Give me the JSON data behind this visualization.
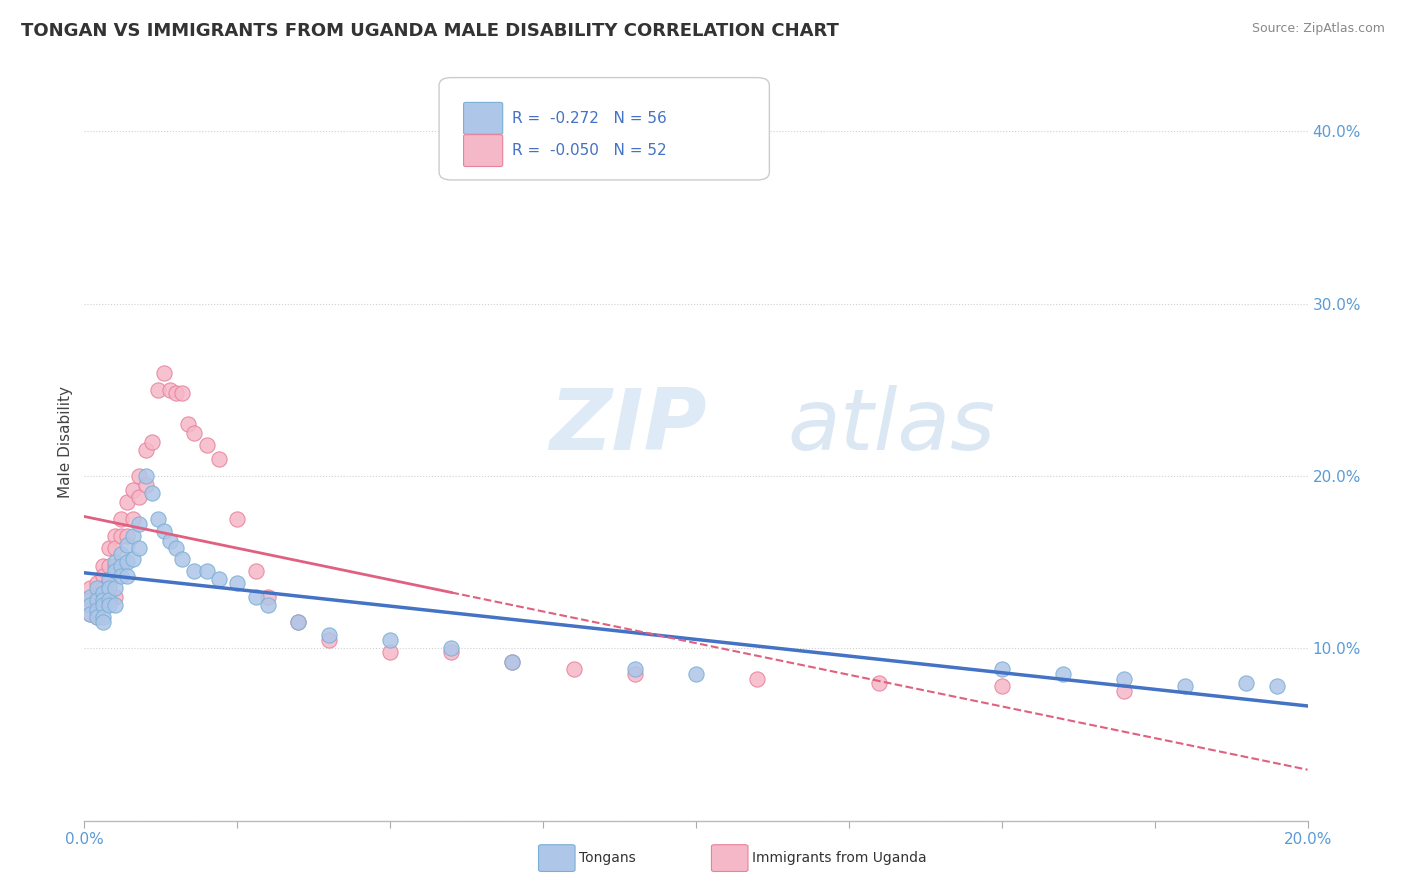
{
  "title": "TONGAN VS IMMIGRANTS FROM UGANDA MALE DISABILITY CORRELATION CHART",
  "source": "Source: ZipAtlas.com",
  "ylabel": "Male Disability",
  "xlim": [
    0.0,
    0.2
  ],
  "ylim": [
    0.0,
    0.44
  ],
  "color_tongan_fill": "#aec6e8",
  "color_tongan_edge": "#7bafd4",
  "color_uganda_fill": "#f5b8c8",
  "color_uganda_edge": "#e8819a",
  "color_line_tongan": "#4472c4",
  "color_line_uganda": "#e06080",
  "watermark_zip": "ZIP",
  "watermark_atlas": "atlas",
  "background_color": "#ffffff",
  "grid_color": "#d0d0d0",
  "tongan_x": [
    0.001,
    0.001,
    0.001,
    0.002,
    0.002,
    0.002,
    0.002,
    0.003,
    0.003,
    0.003,
    0.003,
    0.003,
    0.004,
    0.004,
    0.004,
    0.004,
    0.005,
    0.005,
    0.005,
    0.005,
    0.006,
    0.006,
    0.006,
    0.007,
    0.007,
    0.007,
    0.008,
    0.008,
    0.009,
    0.009,
    0.01,
    0.011,
    0.012,
    0.013,
    0.014,
    0.015,
    0.016,
    0.018,
    0.02,
    0.022,
    0.025,
    0.028,
    0.03,
    0.035,
    0.04,
    0.05,
    0.06,
    0.07,
    0.09,
    0.1,
    0.15,
    0.16,
    0.17,
    0.18,
    0.19,
    0.195
  ],
  "tongan_y": [
    0.13,
    0.125,
    0.12,
    0.135,
    0.128,
    0.122,
    0.118,
    0.132,
    0.128,
    0.125,
    0.118,
    0.115,
    0.14,
    0.135,
    0.128,
    0.125,
    0.15,
    0.145,
    0.135,
    0.125,
    0.155,
    0.148,
    0.142,
    0.16,
    0.15,
    0.142,
    0.165,
    0.152,
    0.172,
    0.158,
    0.2,
    0.19,
    0.175,
    0.168,
    0.162,
    0.158,
    0.152,
    0.145,
    0.145,
    0.14,
    0.138,
    0.13,
    0.125,
    0.115,
    0.108,
    0.105,
    0.1,
    0.092,
    0.088,
    0.085,
    0.088,
    0.085,
    0.082,
    0.078,
    0.08,
    0.078
  ],
  "uganda_x": [
    0.001,
    0.001,
    0.001,
    0.002,
    0.002,
    0.002,
    0.003,
    0.003,
    0.003,
    0.003,
    0.004,
    0.004,
    0.004,
    0.005,
    0.005,
    0.005,
    0.005,
    0.006,
    0.006,
    0.006,
    0.007,
    0.007,
    0.008,
    0.008,
    0.009,
    0.009,
    0.01,
    0.01,
    0.011,
    0.012,
    0.013,
    0.014,
    0.015,
    0.016,
    0.017,
    0.018,
    0.02,
    0.022,
    0.025,
    0.028,
    0.03,
    0.035,
    0.04,
    0.05,
    0.06,
    0.07,
    0.08,
    0.09,
    0.11,
    0.13,
    0.15,
    0.17
  ],
  "uganda_y": [
    0.135,
    0.128,
    0.12,
    0.138,
    0.13,
    0.118,
    0.148,
    0.142,
    0.135,
    0.128,
    0.158,
    0.148,
    0.138,
    0.165,
    0.158,
    0.148,
    0.13,
    0.175,
    0.165,
    0.148,
    0.185,
    0.165,
    0.192,
    0.175,
    0.2,
    0.188,
    0.215,
    0.195,
    0.22,
    0.25,
    0.26,
    0.25,
    0.248,
    0.248,
    0.23,
    0.225,
    0.218,
    0.21,
    0.175,
    0.145,
    0.13,
    0.115,
    0.105,
    0.098,
    0.098,
    0.092,
    0.088,
    0.085,
    0.082,
    0.08,
    0.078,
    0.075
  ]
}
